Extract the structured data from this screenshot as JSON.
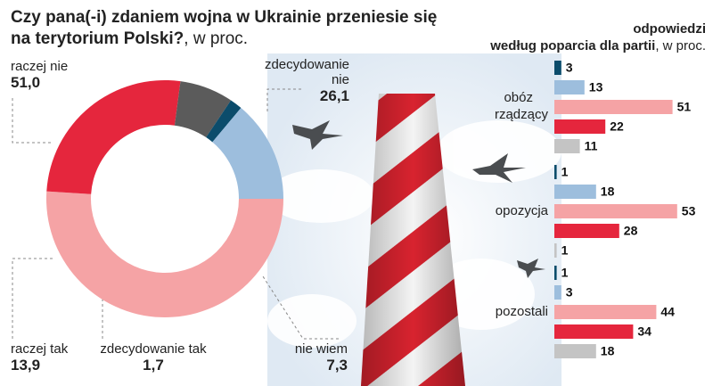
{
  "chart_data": [
    {
      "type": "pie",
      "title": "Czy pana(-i) zdaniem wojna w Ukrainie przeniesie się na terytorium Polski?",
      "subtitle": ", w proc.",
      "categories": [
        "raczej nie",
        "zdecydowanie nie",
        "nie wiem",
        "zdecydowanie tak",
        "raczej tak"
      ],
      "values": [
        51.0,
        26.1,
        7.3,
        1.7,
        13.9
      ],
      "value_labels": [
        "51,0",
        "26,1",
        "7,3",
        "1,7",
        "13,9"
      ],
      "colors": [
        "#f5a3a5",
        "#e5263d",
        "#5b5b5b",
        "#0b4c6b",
        "#9dbedd"
      ]
    },
    {
      "type": "bar",
      "title": [
        "odpowiedzi",
        "według poparcia dla partii"
      ],
      "subtitle": ", w proc.",
      "categories": [
        "obóz rządzący",
        "opozycja",
        "pozostali"
      ],
      "series": [
        {
          "color": "#0b4c6b",
          "values": [
            3,
            1,
            1
          ]
        },
        {
          "color": "#9dbedd",
          "values": [
            13,
            18,
            3
          ]
        },
        {
          "color": "#f5a3a5",
          "values": [
            51,
            53,
            44
          ]
        },
        {
          "color": "#e5263d",
          "values": [
            22,
            28,
            34
          ]
        },
        {
          "color": "#c4c4c4",
          "values": [
            11,
            1,
            18
          ]
        }
      ]
    }
  ]
}
